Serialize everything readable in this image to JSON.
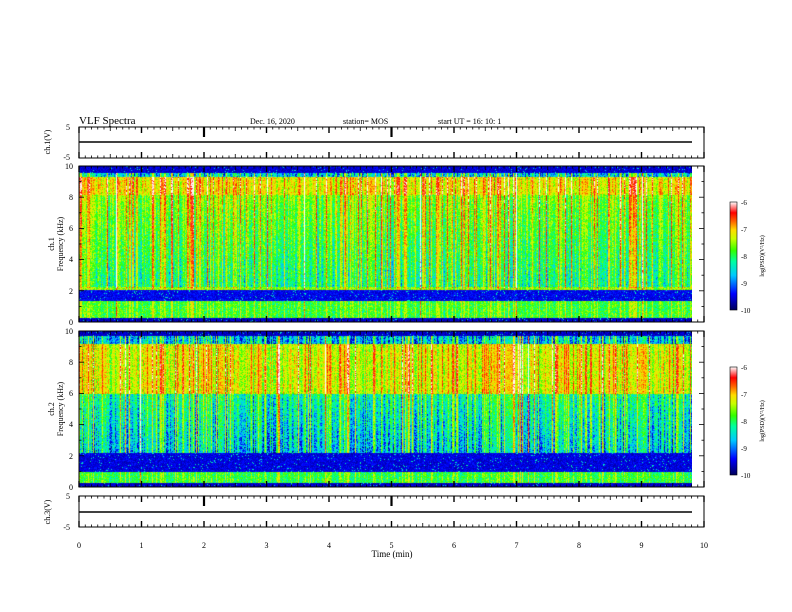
{
  "header": {
    "title": "VLF Spectra",
    "date": "Dec. 16, 2020",
    "station": "station= MOS",
    "start_time": "start  UT =   16: 10: 1"
  },
  "chart_data": [
    {
      "type": "line",
      "panel": "ch1-waveform",
      "ylabel": "ch.1(V)",
      "ylim": [
        -5,
        5
      ],
      "yticks": [
        "5",
        "-5"
      ],
      "x": [
        0,
        9.8
      ],
      "values": [
        0,
        0
      ]
    },
    {
      "type": "heatmap",
      "panel": "ch1-spectrogram",
      "ylabel": "ch.1\nFrequency (kHz)",
      "ylim": [
        0,
        10
      ],
      "yticks": [
        "10",
        "8",
        "6",
        "4",
        "2",
        "0"
      ],
      "xlim": [
        0,
        9.8
      ],
      "colorbar": {
        "label": "log(PSD)(V²/Hz)",
        "range": [
          -10,
          -6
        ],
        "ticks": [
          "-6",
          "-7",
          "-8",
          "-9",
          "-10"
        ]
      },
      "bands": [
        {
          "freq_khz": [
            8.2,
            9.4
          ],
          "level": "high"
        },
        {
          "freq_khz": [
            2.2,
            8.2
          ],
          "level": "medium-high"
        },
        {
          "freq_khz": [
            1.6,
            2.2
          ],
          "level": "low"
        },
        {
          "freq_khz": [
            0.3,
            1.4
          ],
          "level": "medium"
        }
      ]
    },
    {
      "type": "heatmap",
      "panel": "ch2-spectrogram",
      "ylabel": "ch.2\nFrequency (kHz)",
      "ylim": [
        0,
        10
      ],
      "yticks": [
        "10",
        "8",
        "6",
        "4",
        "2",
        "0"
      ],
      "xlim": [
        0,
        9.8
      ],
      "colorbar": {
        "label": "log(PSD)(V²/Hz)",
        "range": [
          -10,
          -6
        ],
        "ticks": [
          "-6",
          "-7",
          "-8",
          "-9",
          "-10"
        ]
      },
      "bands": [
        {
          "freq_khz": [
            6.0,
            9.5
          ],
          "level": "high"
        },
        {
          "freq_khz": [
            2.0,
            6.0
          ],
          "level": "medium"
        },
        {
          "freq_khz": [
            1.0,
            2.0
          ],
          "level": "low"
        },
        {
          "freq_khz": [
            0.3,
            1.0
          ],
          "level": "medium"
        }
      ]
    },
    {
      "type": "line",
      "panel": "ch3-waveform",
      "ylabel": "ch.3(V)",
      "ylim": [
        -5,
        5
      ],
      "yticks": [
        "5",
        "-5"
      ],
      "x": [
        0,
        9.8
      ],
      "values": [
        0,
        0
      ]
    }
  ],
  "xaxis": {
    "label": "Time  (min)",
    "range": [
      0,
      10
    ],
    "ticks": [
      "0",
      "1",
      "2",
      "3",
      "4",
      "5",
      "6",
      "7",
      "8",
      "9",
      "10"
    ]
  },
  "colormap": [
    "#00005a",
    "#0000ff",
    "#00c8ff",
    "#00ffa0",
    "#32ff00",
    "#c8ff00",
    "#ffdc00",
    "#ff6400",
    "#ff0000",
    "#ffffff"
  ]
}
